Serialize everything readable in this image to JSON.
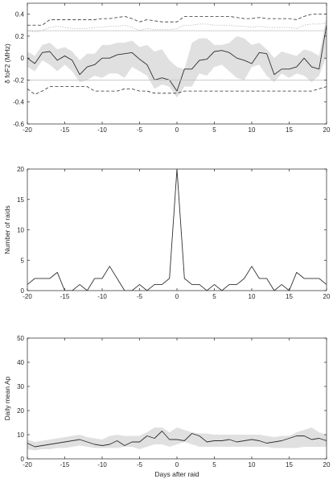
{
  "chart_data": [
    {
      "type": "line",
      "ylabel": "δ foF2 (MHz)",
      "xlabel": "",
      "xlim": [
        -20,
        20
      ],
      "ylim": [
        -0.6,
        0.5
      ],
      "xticks": [
        -20,
        -15,
        -10,
        -5,
        0,
        5,
        10,
        15,
        20
      ],
      "yticks": [
        -0.6,
        -0.4,
        -0.2,
        0,
        0.2,
        0.4
      ],
      "ytick_labels": [
        "-0.6",
        "-0.4",
        "-0.2",
        "0",
        "0.2",
        "0.4"
      ],
      "grid": false,
      "x": [
        -20,
        -19,
        -18,
        -17,
        -16,
        -15,
        -14,
        -13,
        -12,
        -11,
        -10,
        -9,
        -8,
        -7,
        -6,
        -5,
        -4,
        -3,
        -2,
        -1,
        0,
        1,
        2,
        3,
        4,
        5,
        6,
        7,
        8,
        9,
        10,
        11,
        12,
        13,
        14,
        15,
        16,
        17,
        18,
        19,
        20
      ],
      "series": [
        {
          "style": "band",
          "color": "#e0e0e0",
          "lower": [
            -0.08,
            -0.12,
            -0.02,
            -0.06,
            -0.12,
            -0.06,
            -0.12,
            -0.22,
            -0.2,
            -0.16,
            -0.18,
            -0.14,
            -0.14,
            -0.18,
            -0.08,
            -0.12,
            -0.16,
            -0.28,
            -0.24,
            -0.26,
            -0.36,
            -0.26,
            -0.26,
            -0.14,
            -0.16,
            -0.08,
            -0.06,
            -0.12,
            -0.18,
            -0.2,
            -0.08,
            -0.06,
            -0.16,
            -0.22,
            -0.14,
            -0.18,
            -0.14,
            -0.16,
            -0.22,
            -0.16,
            0.02
          ],
          "upper": [
            0.06,
            0.02,
            0.12,
            0.14,
            0.08,
            0.1,
            0.06,
            -0.02,
            0.04,
            0.04,
            0.12,
            0.12,
            0.14,
            0.14,
            0.16,
            0.1,
            0.12,
            0.06,
            0.08,
            -0.02,
            -0.08,
            -0.1,
            0.14,
            0.18,
            0.18,
            0.12,
            0.12,
            0.14,
            0.2,
            0.18,
            0.12,
            0.14,
            0.08,
            0.0,
            0.06,
            0.04,
            0.02,
            0.08,
            0.06,
            0.02,
            0.38
          ]
        },
        {
          "style": "solid",
          "color": "#303030",
          "width": 0.9,
          "values": [
            0.0,
            -0.05,
            0.05,
            0.06,
            -0.02,
            0.02,
            -0.02,
            -0.15,
            -0.08,
            -0.06,
            0.0,
            0.0,
            0.03,
            0.04,
            0.05,
            -0.01,
            -0.06,
            -0.2,
            -0.18,
            -0.2,
            -0.3,
            -0.1,
            -0.1,
            -0.02,
            -0.01,
            0.06,
            0.07,
            0.05,
            0.0,
            -0.02,
            -0.05,
            0.05,
            0.04,
            -0.15,
            -0.1,
            -0.1,
            -0.08,
            0.0,
            -0.08,
            -0.1,
            0.3
          ]
        },
        {
          "style": "dashed",
          "color": "#303030",
          "width": 0.8,
          "values": [
            0.3,
            0.3,
            0.3,
            0.35,
            0.35,
            0.35,
            0.35,
            0.35,
            0.35,
            0.35,
            0.36,
            0.36,
            0.37,
            0.38,
            0.36,
            0.33,
            0.35,
            0.34,
            0.33,
            0.33,
            0.33,
            0.38,
            0.38,
            0.38,
            0.38,
            0.38,
            0.38,
            0.38,
            0.37,
            0.36,
            0.36,
            0.37,
            0.36,
            0.36,
            0.36,
            0.36,
            0.35,
            0.38,
            0.4,
            0.4,
            0.4
          ]
        },
        {
          "style": "dashed",
          "color": "#303030",
          "width": 0.8,
          "values": [
            -0.28,
            -0.33,
            -0.3,
            -0.26,
            -0.26,
            -0.26,
            -0.26,
            -0.26,
            -0.26,
            -0.3,
            -0.3,
            -0.3,
            -0.3,
            -0.28,
            -0.28,
            -0.3,
            -0.3,
            -0.32,
            -0.32,
            -0.32,
            -0.32,
            -0.3,
            -0.3,
            -0.3,
            -0.3,
            -0.3,
            -0.3,
            -0.3,
            -0.3,
            -0.3,
            -0.3,
            -0.3,
            -0.3,
            -0.3,
            -0.3,
            -0.3,
            -0.3,
            -0.3,
            -0.3,
            -0.28,
            -0.26
          ]
        },
        {
          "style": "solid",
          "color": "#c2c2c2",
          "width": 0.8,
          "values": [
            0.25,
            0.25,
            0.25,
            0.25,
            0.25,
            0.25,
            0.25,
            0.25,
            0.25,
            0.25,
            0.25,
            0.25,
            0.25,
            0.25,
            0.25,
            0.25,
            0.25,
            0.25,
            0.25,
            0.25,
            0.25,
            0.25,
            0.25,
            0.25,
            0.25,
            0.25,
            0.25,
            0.25,
            0.25,
            0.25,
            0.25,
            0.25,
            0.25,
            0.25,
            0.25,
            0.25,
            0.25,
            0.25,
            0.25,
            0.25,
            0.25
          ]
        },
        {
          "style": "solid",
          "color": "#c2c2c2",
          "width": 0.8,
          "values": [
            -0.2,
            -0.2,
            -0.2,
            -0.2,
            -0.2,
            -0.2,
            -0.2,
            -0.2,
            -0.2,
            -0.2,
            -0.2,
            -0.2,
            -0.2,
            -0.2,
            -0.2,
            -0.2,
            -0.2,
            -0.2,
            -0.2,
            -0.2,
            -0.2,
            -0.2,
            -0.2,
            -0.2,
            -0.2,
            -0.2,
            -0.2,
            -0.2,
            -0.2,
            -0.2,
            -0.2,
            -0.2,
            -0.2,
            -0.2,
            -0.2,
            -0.2,
            -0.2,
            -0.2,
            -0.2,
            -0.2,
            -0.2
          ]
        },
        {
          "style": "dotted",
          "color": "#a8a8a8",
          "width": 0.8,
          "values": [
            0.25,
            0.24,
            0.25,
            0.28,
            0.29,
            0.28,
            0.27,
            0.27,
            0.27,
            0.28,
            0.28,
            0.29,
            0.29,
            0.3,
            0.28,
            0.25,
            0.27,
            0.26,
            0.26,
            0.26,
            0.27,
            0.3,
            0.3,
            0.31,
            0.31,
            0.3,
            0.3,
            0.3,
            0.29,
            0.29,
            0.28,
            0.29,
            0.28,
            0.28,
            0.28,
            0.28,
            0.27,
            0.3,
            0.31,
            0.31,
            0.32
          ]
        }
      ]
    },
    {
      "type": "line",
      "ylabel": "Number of raids",
      "xlabel": "",
      "xlim": [
        -20,
        20
      ],
      "ylim": [
        0,
        20
      ],
      "xticks": [
        -20,
        -15,
        -10,
        -5,
        0,
        5,
        10,
        15,
        20
      ],
      "yticks": [
        0,
        5,
        10,
        15,
        20
      ],
      "ytick_labels": [
        "0",
        "5",
        "10",
        "15",
        "20"
      ],
      "grid": false,
      "x": [
        -20,
        -19,
        -18,
        -17,
        -16,
        -15,
        -14,
        -13,
        -12,
        -11,
        -10,
        -9,
        -8,
        -7,
        -6,
        -5,
        -4,
        -3,
        -2,
        -1,
        0,
        1,
        2,
        3,
        4,
        5,
        6,
        7,
        8,
        9,
        10,
        11,
        12,
        13,
        14,
        15,
        16,
        17,
        18,
        19,
        20
      ],
      "series": [
        {
          "style": "solid",
          "color": "#303030",
          "width": 0.9,
          "values": [
            1,
            2,
            2,
            2,
            3,
            0,
            0,
            1,
            0,
            2,
            2,
            4,
            2,
            0,
            0,
            1,
            0,
            1,
            1,
            2,
            20,
            2,
            1,
            1,
            0,
            1,
            0,
            1,
            1,
            2,
            4,
            2,
            2,
            0,
            1,
            0,
            3,
            2,
            2,
            2,
            1
          ]
        }
      ]
    },
    {
      "type": "line",
      "ylabel": "Daily mean Ap",
      "xlabel": "Days after raid",
      "xlim": [
        -20,
        20
      ],
      "ylim": [
        0,
        50
      ],
      "xticks": [
        -20,
        -15,
        -10,
        -5,
        0,
        5,
        10,
        15,
        20
      ],
      "yticks": [
        0,
        10,
        20,
        30,
        40,
        50
      ],
      "ytick_labels": [
        "0",
        "10",
        "20",
        "30",
        "40",
        "50"
      ],
      "grid": false,
      "x": [
        -20,
        -19,
        -18,
        -17,
        -16,
        -15,
        -14,
        -13,
        -12,
        -11,
        -10,
        -9,
        -8,
        -7,
        -6,
        -5,
        -4,
        -3,
        -2,
        -1,
        0,
        1,
        2,
        3,
        4,
        5,
        6,
        7,
        8,
        9,
        10,
        11,
        12,
        13,
        14,
        15,
        16,
        17,
        18,
        19,
        20
      ],
      "series": [
        {
          "style": "band",
          "color": "#e0e0e0",
          "lower": [
            4,
            3.5,
            4,
            4,
            4.5,
            4.5,
            5,
            5.5,
            5,
            4.5,
            4.5,
            4.5,
            4.5,
            5,
            5,
            4,
            5,
            6,
            6,
            5,
            6,
            7,
            6,
            5,
            5,
            5,
            5,
            5,
            5,
            5,
            5,
            5,
            5,
            4.5,
            4.5,
            4.5,
            4.5,
            5,
            5,
            5,
            5
          ],
          "upper": [
            8,
            7,
            7.5,
            8,
            8.5,
            9,
            9.5,
            10,
            9,
            8.5,
            8,
            9.5,
            10,
            9.5,
            9.5,
            9.5,
            11,
            13,
            13,
            11,
            13,
            12,
            11,
            10.5,
            10.5,
            10,
            10,
            10,
            10,
            10,
            10,
            10,
            9.5,
            9,
            9.5,
            9.5,
            11,
            12,
            13,
            11,
            10
          ]
        },
        {
          "style": "solid",
          "color": "#303030",
          "width": 0.9,
          "values": [
            6.5,
            5,
            5.5,
            6,
            6.5,
            7,
            7.5,
            8,
            7,
            6,
            5.5,
            6,
            7.5,
            5.5,
            7,
            7,
            9.5,
            8.5,
            11.5,
            8,
            8,
            7.5,
            10.5,
            9.5,
            7,
            7.5,
            7.5,
            8,
            7,
            7.5,
            8,
            7.5,
            6.5,
            7,
            7.5,
            8.5,
            9.5,
            9.5,
            8,
            8.5,
            7.5
          ]
        }
      ]
    }
  ]
}
